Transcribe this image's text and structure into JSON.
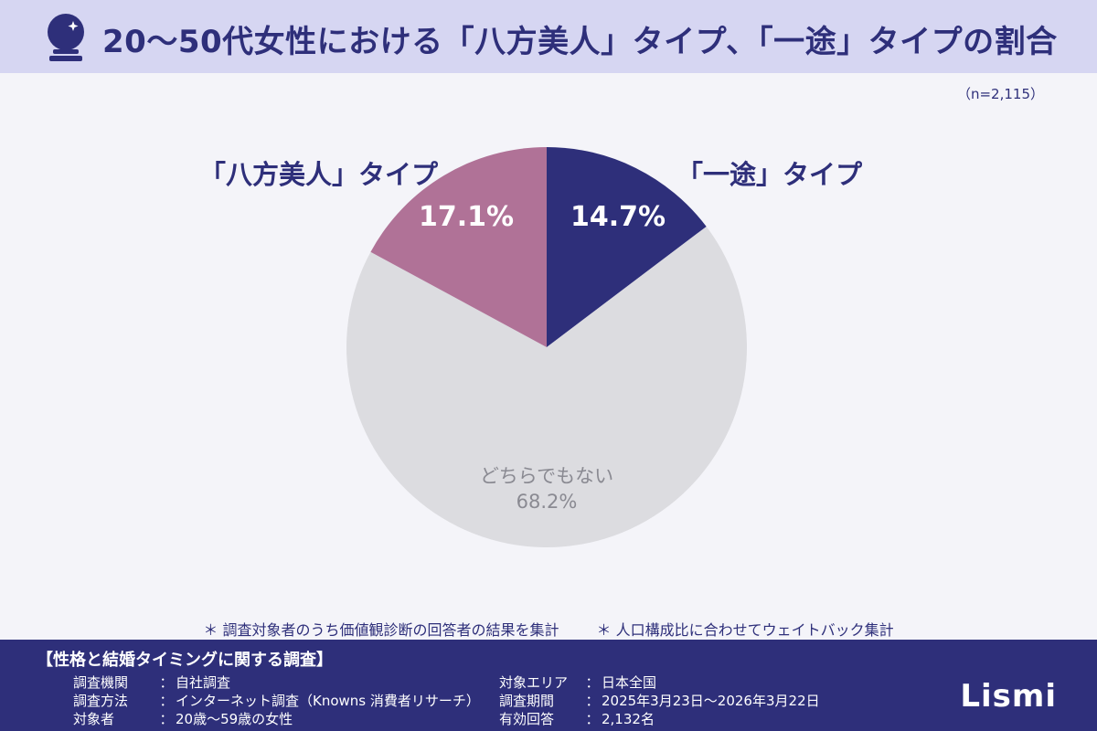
{
  "header": {
    "title": "20〜50代女性における「八方美人」タイプ、「一途」タイプの割合",
    "icon": "crystal-ball-icon"
  },
  "sample_size": "（n=2,115）",
  "chart_data": {
    "type": "pie",
    "title": "20〜50代女性における「八方美人」タイプ、「一途」タイプの割合",
    "slices": [
      {
        "name": "「一途」タイプ",
        "value": 14.7,
        "label": "14.7%",
        "color": "#2e2f7a"
      },
      {
        "name": "どちらでもない",
        "value": 68.2,
        "label": "68.2%",
        "color": "#dcdce0"
      },
      {
        "name": "「八方美人」タイプ",
        "value": 17.1,
        "label": "17.1%",
        "color": "#b07297"
      }
    ],
    "start_angle_deg": 0,
    "direction": "clockwise"
  },
  "notes": [
    "＊ 調査対象者のうち価値観診断の回答者の結果を集計",
    "＊ 人口構成比に合わせてウェイトバック集計"
  ],
  "footer": {
    "title": "【性格と結婚タイミングに関する調査】",
    "left": [
      {
        "key": "調査機関",
        "value": "自社調査"
      },
      {
        "key": "調査方法",
        "value": "インターネット調査（Knowns 消費者リサーチ）"
      },
      {
        "key": "対象者",
        "value": "20歳〜59歳の女性"
      }
    ],
    "right": [
      {
        "key": "対象エリア",
        "value": "日本全国"
      },
      {
        "key": "調査期間",
        "value": "2025年3月23日〜2026年3月22日"
      },
      {
        "key": "有効回答",
        "value": "2,132名"
      }
    ],
    "sep": "：",
    "logo": "Lismi"
  }
}
